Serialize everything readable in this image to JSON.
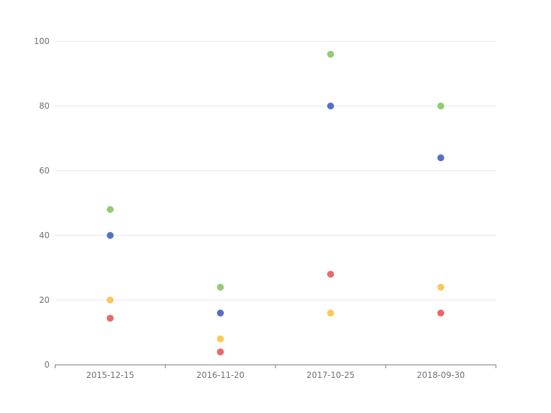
{
  "chart_data": {
    "type": "scatter",
    "title": "",
    "xlabel": "",
    "ylabel": "",
    "categories": [
      "2015-12-15",
      "2016-11-20",
      "2017-10-25",
      "2018-09-30"
    ],
    "ylim": [
      0,
      100
    ],
    "yticks": [
      0,
      20,
      40,
      60,
      80,
      100
    ],
    "grid": true,
    "legend": "none",
    "series": [
      {
        "color": "#91cc75",
        "values": [
          48,
          24,
          96,
          80
        ]
      },
      {
        "color": "#5470c6",
        "values": [
          40,
          16,
          80,
          64
        ]
      },
      {
        "color": "#fac858",
        "values": [
          20,
          8,
          16,
          24
        ]
      },
      {
        "color": "#ee6666",
        "values": [
          14.4,
          4,
          28,
          16
        ]
      }
    ]
  }
}
